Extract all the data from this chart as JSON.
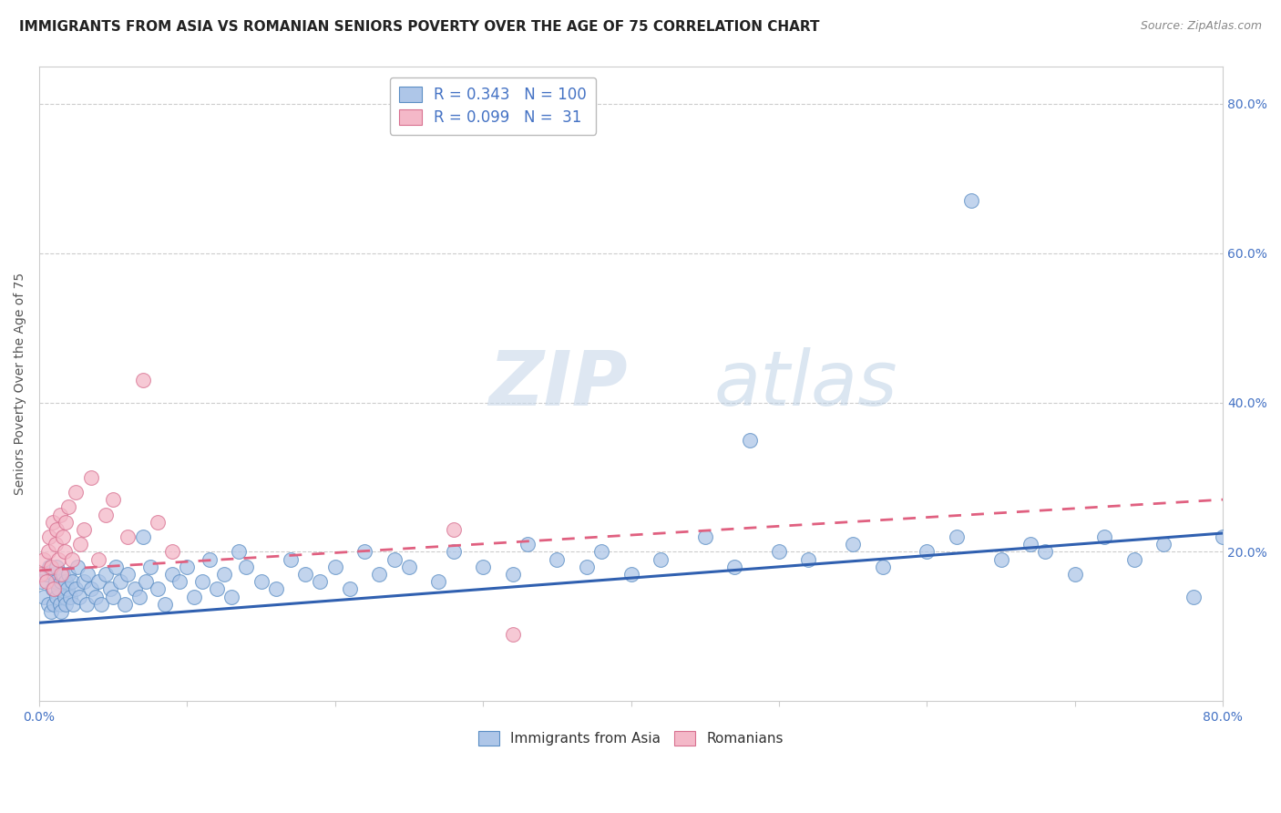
{
  "title": "IMMIGRANTS FROM ASIA VS ROMANIAN SENIORS POVERTY OVER THE AGE OF 75 CORRELATION CHART",
  "source_text": "Source: ZipAtlas.com",
  "ylabel": "Seniors Poverty Over the Age of 75",
  "xlim": [
    0.0,
    0.8
  ],
  "ylim": [
    0.0,
    0.85
  ],
  "xticks": [
    0.0,
    0.1,
    0.2,
    0.3,
    0.4,
    0.5,
    0.6,
    0.7,
    0.8
  ],
  "yticks_right": [
    0.0,
    0.2,
    0.4,
    0.6,
    0.8
  ],
  "yticklabels_right": [
    "",
    "20.0%",
    "40.0%",
    "60.0%",
    "80.0%"
  ],
  "grid_color": "#cccccc",
  "watermark_zip": "ZIP",
  "watermark_atlas": "atlas",
  "asia_color": "#aec6e8",
  "asia_edge_color": "#5b8ec4",
  "romania_color": "#f4b8c8",
  "romania_edge_color": "#d87090",
  "asia_line_color": "#3060b0",
  "romania_line_color": "#e06080",
  "asia_scatter_x": [
    0.001,
    0.003,
    0.005,
    0.006,
    0.007,
    0.008,
    0.009,
    0.01,
    0.01,
    0.011,
    0.012,
    0.012,
    0.013,
    0.014,
    0.015,
    0.015,
    0.016,
    0.017,
    0.018,
    0.018,
    0.019,
    0.02,
    0.021,
    0.022,
    0.023,
    0.025,
    0.026,
    0.027,
    0.03,
    0.032,
    0.033,
    0.035,
    0.038,
    0.04,
    0.042,
    0.045,
    0.048,
    0.05,
    0.052,
    0.055,
    0.058,
    0.06,
    0.065,
    0.068,
    0.07,
    0.072,
    0.075,
    0.08,
    0.085,
    0.09,
    0.095,
    0.1,
    0.105,
    0.11,
    0.115,
    0.12,
    0.125,
    0.13,
    0.135,
    0.14,
    0.15,
    0.16,
    0.17,
    0.18,
    0.19,
    0.2,
    0.21,
    0.22,
    0.23,
    0.24,
    0.25,
    0.27,
    0.28,
    0.3,
    0.32,
    0.33,
    0.35,
    0.37,
    0.38,
    0.4,
    0.42,
    0.45,
    0.47,
    0.48,
    0.5,
    0.52,
    0.55,
    0.57,
    0.6,
    0.62,
    0.63,
    0.65,
    0.67,
    0.68,
    0.7,
    0.72,
    0.74,
    0.76,
    0.78,
    0.8
  ],
  "asia_scatter_y": [
    0.16,
    0.14,
    0.17,
    0.13,
    0.18,
    0.12,
    0.15,
    0.17,
    0.13,
    0.16,
    0.14,
    0.18,
    0.15,
    0.13,
    0.16,
    0.12,
    0.17,
    0.14,
    0.16,
    0.13,
    0.15,
    0.17,
    0.14,
    0.16,
    0.13,
    0.15,
    0.18,
    0.14,
    0.16,
    0.13,
    0.17,
    0.15,
    0.14,
    0.16,
    0.13,
    0.17,
    0.15,
    0.14,
    0.18,
    0.16,
    0.13,
    0.17,
    0.15,
    0.14,
    0.22,
    0.16,
    0.18,
    0.15,
    0.13,
    0.17,
    0.16,
    0.18,
    0.14,
    0.16,
    0.19,
    0.15,
    0.17,
    0.14,
    0.2,
    0.18,
    0.16,
    0.15,
    0.19,
    0.17,
    0.16,
    0.18,
    0.15,
    0.2,
    0.17,
    0.19,
    0.18,
    0.16,
    0.2,
    0.18,
    0.17,
    0.21,
    0.19,
    0.18,
    0.2,
    0.17,
    0.19,
    0.22,
    0.18,
    0.35,
    0.2,
    0.19,
    0.21,
    0.18,
    0.2,
    0.22,
    0.67,
    0.19,
    0.21,
    0.2,
    0.17,
    0.22,
    0.19,
    0.21,
    0.14,
    0.22
  ],
  "romania_scatter_x": [
    0.001,
    0.003,
    0.005,
    0.006,
    0.007,
    0.008,
    0.009,
    0.01,
    0.011,
    0.012,
    0.013,
    0.014,
    0.015,
    0.016,
    0.017,
    0.018,
    0.02,
    0.022,
    0.025,
    0.028,
    0.03,
    0.035,
    0.04,
    0.045,
    0.05,
    0.06,
    0.07,
    0.08,
    0.09,
    0.28,
    0.32
  ],
  "romania_scatter_y": [
    0.17,
    0.19,
    0.16,
    0.2,
    0.22,
    0.18,
    0.24,
    0.15,
    0.21,
    0.23,
    0.19,
    0.25,
    0.17,
    0.22,
    0.2,
    0.24,
    0.26,
    0.19,
    0.28,
    0.21,
    0.23,
    0.3,
    0.19,
    0.25,
    0.27,
    0.22,
    0.43,
    0.24,
    0.2,
    0.23,
    0.09
  ],
  "asia_line_x": [
    0.0,
    0.8
  ],
  "asia_line_y": [
    0.105,
    0.225
  ],
  "romania_line_x": [
    0.0,
    0.8
  ],
  "romania_line_y": [
    0.175,
    0.27
  ],
  "title_fontsize": 11,
  "label_fontsize": 10,
  "tick_fontsize": 10,
  "legend_fontsize": 12
}
